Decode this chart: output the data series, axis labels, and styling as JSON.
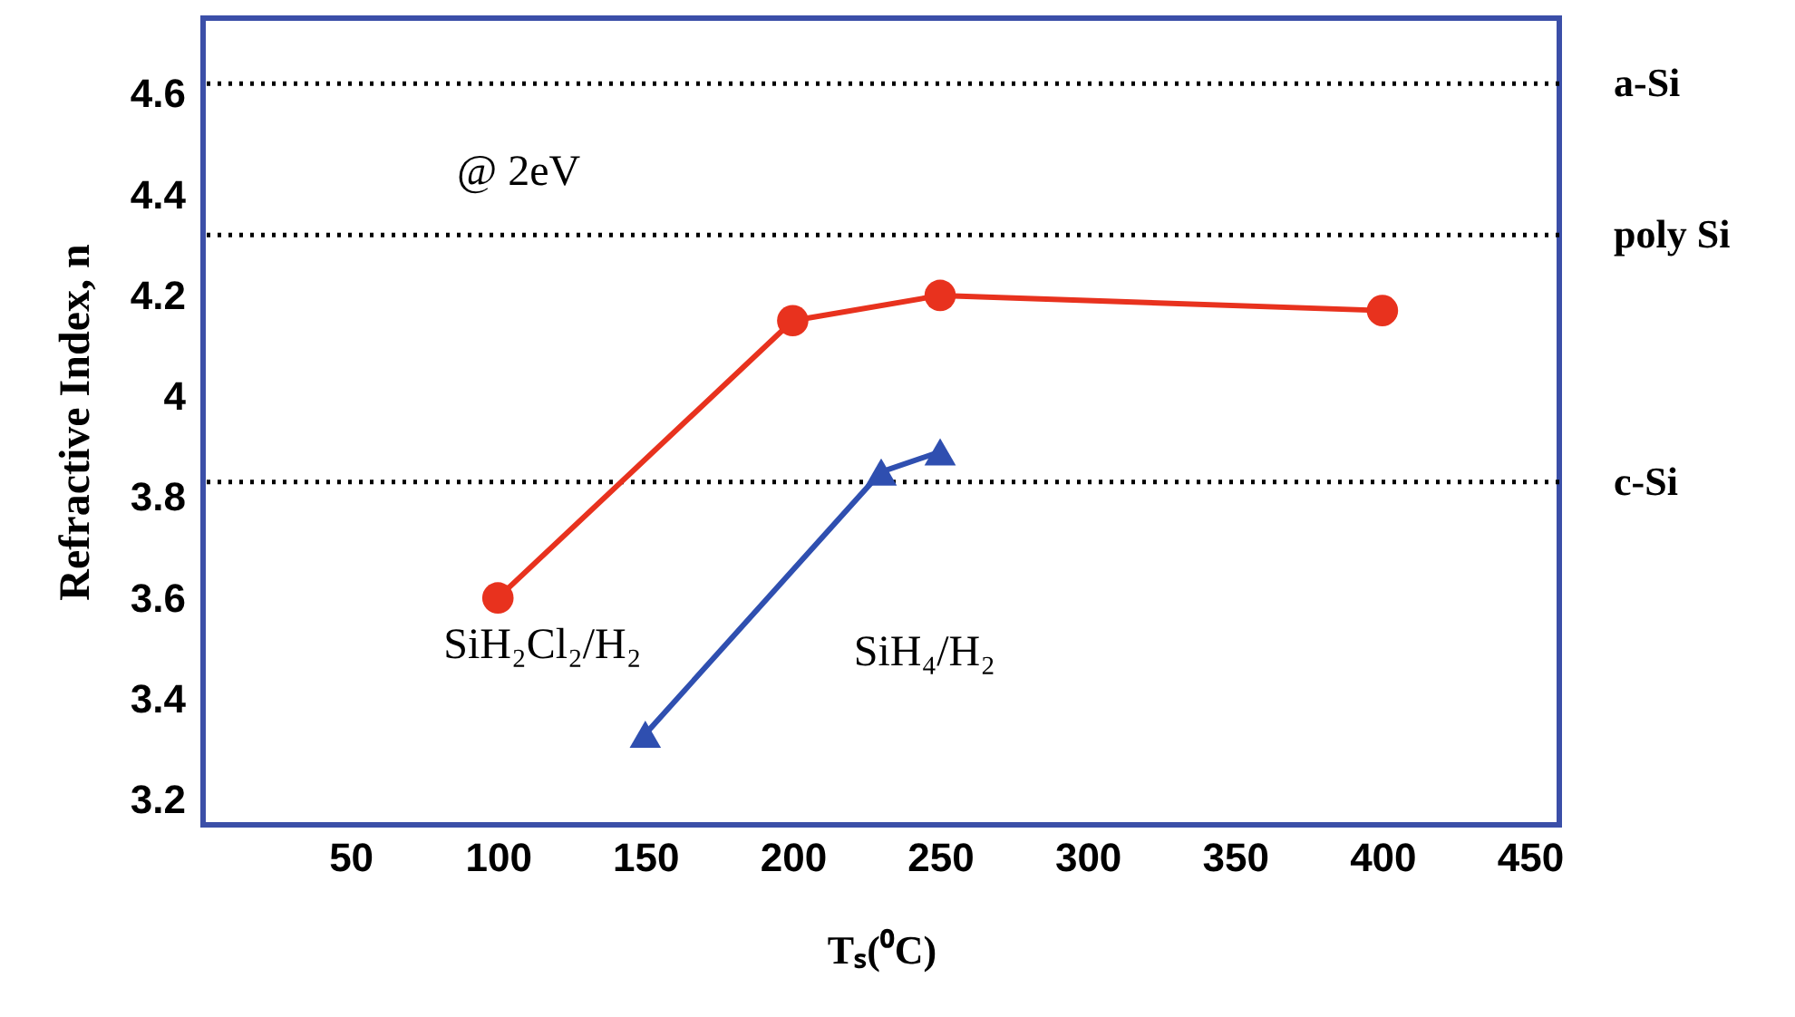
{
  "chart_data": {
    "type": "line",
    "xlabel": "Tₛ(⁰C)",
    "ylabel": "Refractive Index, n",
    "xlim": [
      0,
      460
    ],
    "xticks": [
      50,
      100,
      150,
      200,
      250,
      300,
      350,
      400,
      450
    ],
    "ylim": [
      3.15,
      4.75
    ],
    "yticks": [
      3.2,
      3.4,
      3.6,
      3.8,
      4,
      4.2,
      4.4,
      4.6
    ],
    "series": [
      {
        "name": "SiH₂Cl₂/H₂",
        "color": "#e8321e",
        "marker": "circle",
        "x": [
          100,
          200,
          250,
          400
        ],
        "values": [
          3.6,
          4.15,
          4.2,
          4.17
        ]
      },
      {
        "name": "SiH₄/H₂",
        "color": "#2f4fb0",
        "marker": "triangle",
        "x": [
          150,
          230,
          250
        ],
        "values": [
          3.33,
          3.85,
          3.89
        ]
      }
    ],
    "ref_lines": [
      {
        "axis": "y",
        "value": 4.62,
        "label": "a-Si",
        "line_style": "dotted",
        "color": "#000000"
      },
      {
        "axis": "y",
        "value": 4.32,
        "label": "poly Si",
        "line_style": "dotted",
        "color": "#000000"
      },
      {
        "axis": "y",
        "value": 3.83,
        "label": "c-Si",
        "line_style": "dotted",
        "color": "#000000"
      }
    ],
    "annotations": [
      "@ 2eV"
    ],
    "grid": false,
    "line_style": "solid"
  }
}
